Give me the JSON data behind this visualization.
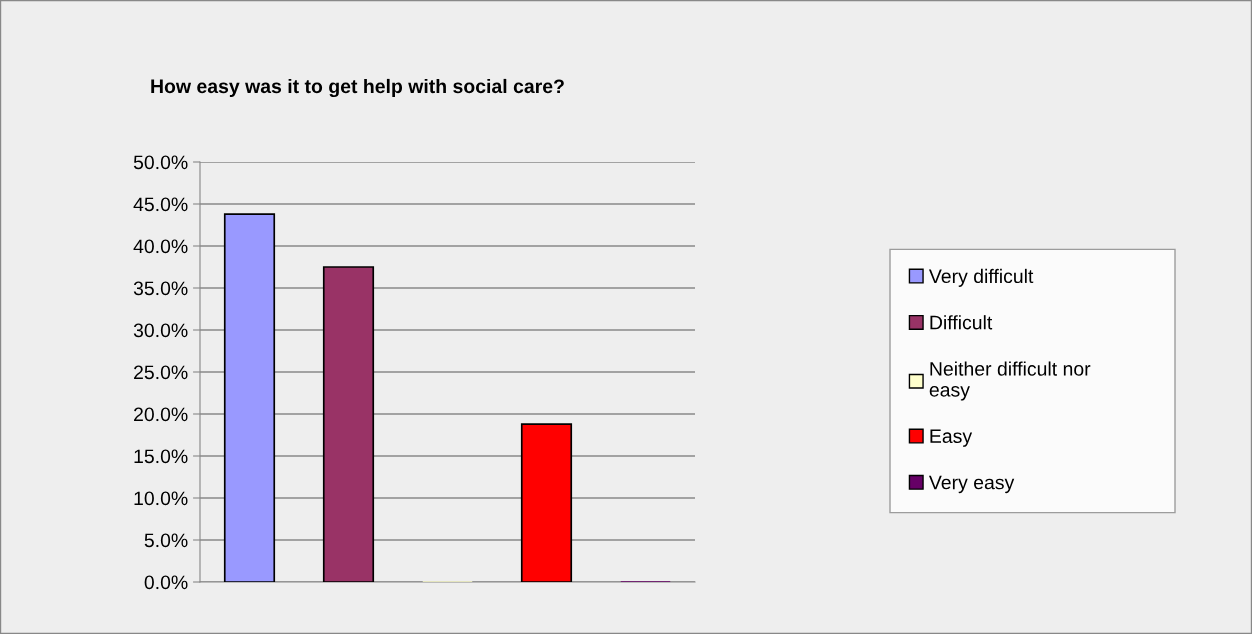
{
  "chart_data": {
    "type": "bar",
    "title": "How easy was it to get help with social care?",
    "categories": [
      null,
      null,
      null,
      null,
      null
    ],
    "series": [
      {
        "name": "Very difficult",
        "color": "#9999ff",
        "values": [
          43.8,
          null,
          null,
          null,
          null
        ]
      },
      {
        "name": "Difficult",
        "color": "#993366",
        "values": [
          null,
          37.5,
          null,
          null,
          null
        ]
      },
      {
        "name": "Neither difficult nor easy",
        "color": "#ffffcc",
        "values": [
          null,
          null,
          0,
          null,
          null
        ]
      },
      {
        "name": "Easy",
        "color": "#ff0000",
        "values": [
          null,
          null,
          null,
          18.8,
          null
        ]
      },
      {
        "name": "Very easy",
        "color": "#660066",
        "values": [
          null,
          null,
          null,
          null,
          0
        ]
      }
    ],
    "ylim": [
      0,
      50
    ],
    "yticks": [
      {
        "value": 0,
        "label": "0.0%"
      },
      {
        "value": 5,
        "label": "5.0%"
      },
      {
        "value": 10,
        "label": "10.0%"
      },
      {
        "value": 15,
        "label": "15.0%"
      },
      {
        "value": 20,
        "label": "20.0%"
      },
      {
        "value": 25,
        "label": "25.0%"
      },
      {
        "value": 30,
        "label": "30.0%"
      },
      {
        "value": 35,
        "label": "35.0%"
      },
      {
        "value": 40,
        "label": "40.0%"
      },
      {
        "value": 45,
        "label": "45.0%"
      },
      {
        "value": 50,
        "label": "50.0%"
      }
    ],
    "grid": "y",
    "legend": "right"
  }
}
